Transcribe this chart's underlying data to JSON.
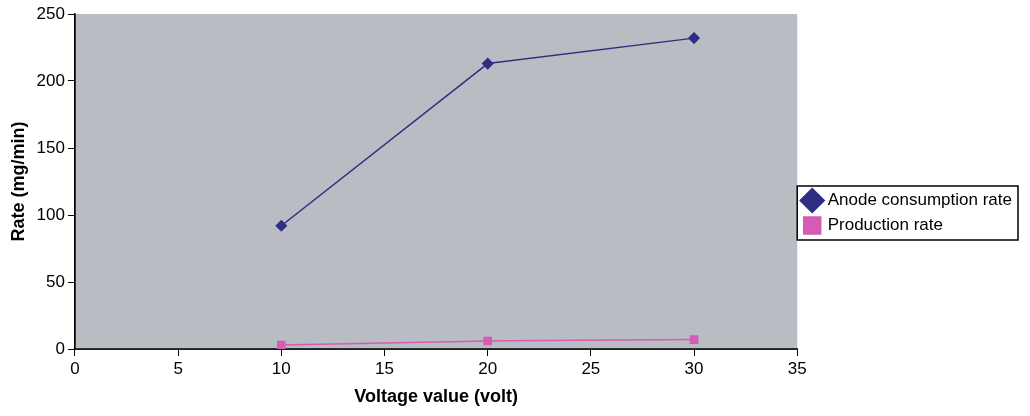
{
  "chart_data": {
    "type": "line",
    "xlabel": "Voltage value (volt)",
    "ylabel": "Rate (mg/min)",
    "xlim": [
      0,
      35
    ],
    "xticks": [
      0,
      5,
      10,
      15,
      20,
      25,
      30,
      35
    ],
    "ylim": [
      0,
      250
    ],
    "yticks": [
      0,
      50,
      100,
      150,
      200,
      250
    ],
    "grid": false,
    "legend": "right",
    "line_style": "solid",
    "series": [
      {
        "name": "Anode consumption rate",
        "color": "#2e2e82",
        "marker": "diamond",
        "x": [
          10,
          20,
          30
        ],
        "values": [
          92,
          213,
          232
        ]
      },
      {
        "name": "Production rate",
        "color": "#d65bb4",
        "marker": "square",
        "x": [
          10,
          20,
          30
        ],
        "values": [
          3,
          6,
          7
        ]
      }
    ]
  }
}
